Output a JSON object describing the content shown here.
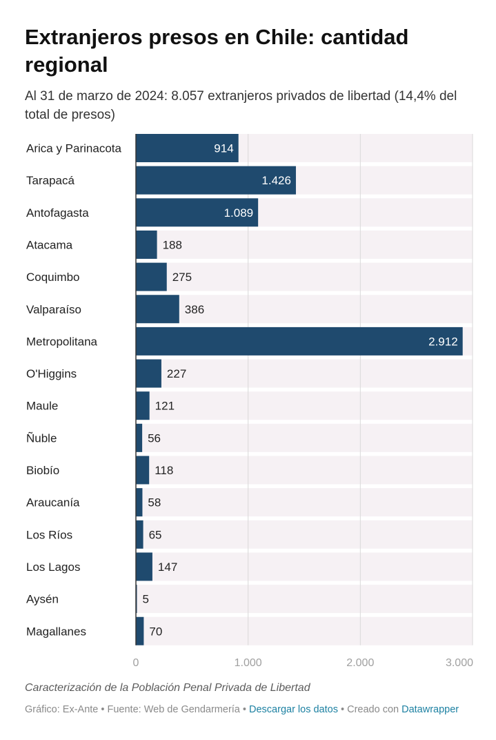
{
  "header": {
    "title": "Extranjeros presos en Chile: cantidad regional",
    "subtitle": "Al 31 de marzo de 2024: 8.057 extranjeros privados de libertad (14,4% del total de presos)"
  },
  "chart_data": {
    "type": "bar",
    "orientation": "horizontal",
    "categories": [
      "Arica y Parinacota",
      "Tarapacá",
      "Antofagasta",
      "Atacama",
      "Coquimbo",
      "Valparaíso",
      "Metropolitana",
      "O'Higgins",
      "Maule",
      "Ñuble",
      "Biobío",
      "Araucanía",
      "Los Ríos",
      "Los Lagos",
      "Aysén",
      "Magallanes"
    ],
    "values": [
      914,
      1426,
      1089,
      188,
      275,
      386,
      2912,
      227,
      121,
      56,
      118,
      58,
      65,
      147,
      5,
      70
    ],
    "value_labels": [
      "914",
      "1.426",
      "1.089",
      "188",
      "275",
      "386",
      "2.912",
      "227",
      "121",
      "56",
      "118",
      "58",
      "65",
      "147",
      "5",
      "70"
    ],
    "xlim": [
      0,
      3000
    ],
    "x_ticks": [
      0,
      1000,
      2000,
      3000
    ],
    "x_tick_labels": [
      "0",
      "1.000",
      "2.000",
      "3.000"
    ],
    "grid": true,
    "bar_color": "#1f4a6e",
    "track_color": "#f6f1f4"
  },
  "notes": "Caracterización de la Población Penal Privada de Libertad",
  "footer": {
    "credit": "Gráfico: Ex-Ante • Fuente: Web de Gendarmería • ",
    "download_label": "Descargar los datos",
    "created_with": " • Creado con ",
    "tool_label": "Datawrapper"
  }
}
